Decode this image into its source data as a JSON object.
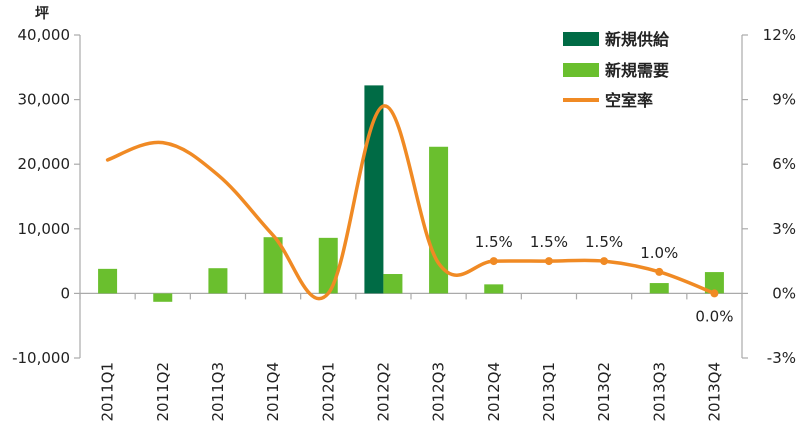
{
  "chart_data": {
    "type": "bar",
    "categories": [
      "2011Q1",
      "2011Q2",
      "2011Q3",
      "2011Q4",
      "2012Q1",
      "2012Q2",
      "2012Q3",
      "2012Q4",
      "2013Q1",
      "2013Q2",
      "2013Q3",
      "2013Q4"
    ],
    "y_unit": "坪",
    "ylim": [
      -10000,
      40000
    ],
    "y_ticks": [
      -10000,
      0,
      10000,
      20000,
      30000,
      40000
    ],
    "y_tick_labels": [
      "-10,000",
      "0",
      "10,000",
      "20,000",
      "30,000",
      "40,000"
    ],
    "y2lim": [
      -3,
      12
    ],
    "y2_ticks": [
      -3,
      0,
      3,
      6,
      9,
      12
    ],
    "y2_tick_labels": [
      "-3%",
      "0%",
      "3%",
      "6%",
      "9%",
      "12%"
    ],
    "grid": false,
    "legend_position": "top-right",
    "series": [
      {
        "name": "新規供給",
        "type": "bar",
        "axis": "left",
        "color": "#006b45",
        "values": [
          0,
          0,
          0,
          0,
          0,
          32200,
          0,
          0,
          0,
          0,
          0,
          0
        ]
      },
      {
        "name": "新規需要",
        "type": "bar",
        "axis": "left",
        "color": "#6abf2e",
        "values": [
          3800,
          -1300,
          3900,
          8700,
          8600,
          3000,
          22700,
          1400,
          0,
          0,
          1600,
          3300
        ]
      },
      {
        "name": "空室率",
        "type": "line",
        "axis": "right",
        "color": "#f08a24",
        "values": [
          6.2,
          7.0,
          5.5,
          2.7,
          0.0,
          8.7,
          1.4,
          1.5,
          1.5,
          1.5,
          1.0,
          0.0
        ]
      }
    ],
    "data_labels": [
      {
        "index": 7,
        "text": "1.5%"
      },
      {
        "index": 8,
        "text": "1.5%"
      },
      {
        "index": 9,
        "text": "1.5%"
      },
      {
        "index": 10,
        "text": "1.0%"
      },
      {
        "index": 11,
        "text": "0.0%"
      }
    ]
  }
}
